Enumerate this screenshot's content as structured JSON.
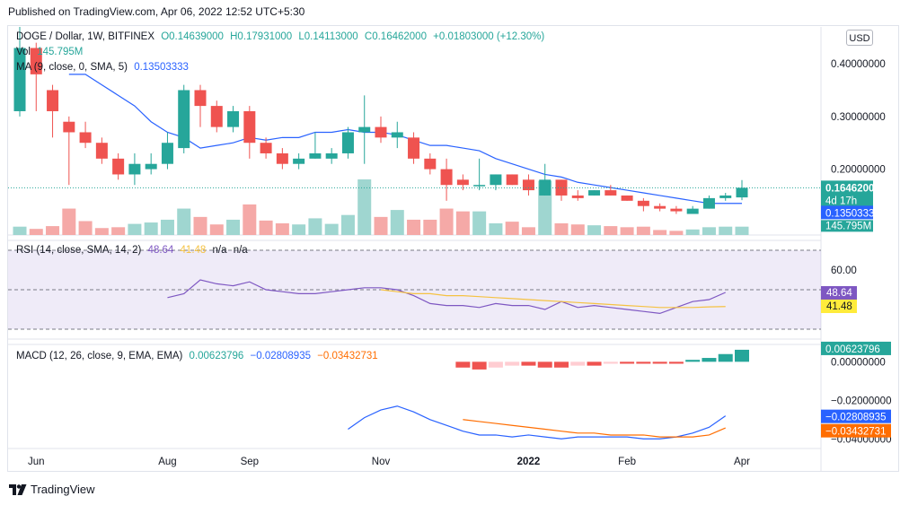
{
  "caption": "Published on TradingView.com, Apr 06, 2022 12:52 UTC+5:30",
  "brand": "TradingView",
  "currency_button": "USD",
  "legend": {
    "symbol": "DOGE / Dollar, 1W, BITFINEX",
    "open": "O0.14639000",
    "high": "H0.17931000",
    "low": "L0.14113000",
    "close": "C0.16462000",
    "change": "+0.01803000 (+12.30%)",
    "vol_label": "Vol",
    "vol_value": "145.795M",
    "ma_label": "MA (9, close, 0, SMA, 5)",
    "ma_value": "0.13503333",
    "rsi_label": "RSI (14, close, SMA, 14, 2)",
    "rsi_value": "48.64",
    "rsi_sma_value": "41.48",
    "rsi_na1": "n/a",
    "rsi_na2": "n/a",
    "macd_label": "MACD (12, 26, close, 9, EMA, EMA)",
    "macd_value": "0.00623796",
    "macd_signal_value": "−0.02808935",
    "macd_hist_value": "−0.03432731"
  },
  "colors": {
    "up": "#26a69a",
    "down": "#ef5350",
    "vol_up": "#9fd6d0",
    "vol_down": "#f5a9a7",
    "ma": "#2962ff",
    "rsi": "#7e57c2",
    "rsi_sma": "#f5c242",
    "macd": "#2962ff",
    "signal": "#ff6d00",
    "price_label": "#26a69a",
    "ma_label": "#2962ff",
    "rsi_label": "#7e57c2",
    "rsi_sma_label": "#ffeb3b"
  },
  "chart_data": {
    "type": "candlestick",
    "x_tick_labels": [
      "Jun",
      "Aug",
      "Sep",
      "Nov",
      "2022",
      "Feb",
      "Apr"
    ],
    "price_axis_ticks": [
      "0.40000000",
      "0.30000000",
      "0.20000000"
    ],
    "price_axis_values": [
      0.4,
      0.3,
      0.2
    ],
    "price_range": [
      0.075,
      0.47
    ],
    "last_price_label": "0.16462000",
    "countdown_label": "4d 17h",
    "ma_label_value": "0.13503333",
    "vol_label_value": "145.795M",
    "candles": [
      {
        "o": 0.31,
        "h": 0.47,
        "l": 0.3,
        "c": 0.43,
        "v": 0.3
      },
      {
        "o": 0.43,
        "h": 0.44,
        "l": 0.31,
        "c": 0.38,
        "v": 0.22
      },
      {
        "o": 0.35,
        "h": 0.36,
        "l": 0.26,
        "c": 0.31,
        "v": 0.32
      },
      {
        "o": 0.29,
        "h": 0.3,
        "l": 0.17,
        "c": 0.27,
        "v": 0.95
      },
      {
        "o": 0.27,
        "h": 0.29,
        "l": 0.24,
        "c": 0.25,
        "v": 0.5
      },
      {
        "o": 0.25,
        "h": 0.26,
        "l": 0.21,
        "c": 0.22,
        "v": 0.25
      },
      {
        "o": 0.22,
        "h": 0.23,
        "l": 0.18,
        "c": 0.19,
        "v": 0.28
      },
      {
        "o": 0.19,
        "h": 0.23,
        "l": 0.17,
        "c": 0.21,
        "v": 0.4
      },
      {
        "o": 0.2,
        "h": 0.23,
        "l": 0.19,
        "c": 0.21,
        "v": 0.45
      },
      {
        "o": 0.21,
        "h": 0.27,
        "l": 0.2,
        "c": 0.25,
        "v": 0.55
      },
      {
        "o": 0.24,
        "h": 0.36,
        "l": 0.23,
        "c": 0.35,
        "v": 0.95
      },
      {
        "o": 0.35,
        "h": 0.36,
        "l": 0.28,
        "c": 0.32,
        "v": 0.65
      },
      {
        "o": 0.32,
        "h": 0.33,
        "l": 0.27,
        "c": 0.28,
        "v": 0.38
      },
      {
        "o": 0.28,
        "h": 0.32,
        "l": 0.27,
        "c": 0.31,
        "v": 0.55
      },
      {
        "o": 0.31,
        "h": 0.32,
        "l": 0.22,
        "c": 0.25,
        "v": 1.1
      },
      {
        "o": 0.25,
        "h": 0.26,
        "l": 0.22,
        "c": 0.23,
        "v": 0.52
      },
      {
        "o": 0.23,
        "h": 0.24,
        "l": 0.2,
        "c": 0.21,
        "v": 0.42
      },
      {
        "o": 0.21,
        "h": 0.23,
        "l": 0.2,
        "c": 0.22,
        "v": 0.38
      },
      {
        "o": 0.22,
        "h": 0.27,
        "l": 0.22,
        "c": 0.23,
        "v": 0.6
      },
      {
        "o": 0.22,
        "h": 0.24,
        "l": 0.21,
        "c": 0.23,
        "v": 0.4
      },
      {
        "o": 0.23,
        "h": 0.28,
        "l": 0.22,
        "c": 0.27,
        "v": 0.72
      },
      {
        "o": 0.27,
        "h": 0.34,
        "l": 0.21,
        "c": 0.28,
        "v": 2.0
      },
      {
        "o": 0.28,
        "h": 0.3,
        "l": 0.25,
        "c": 0.26,
        "v": 0.65
      },
      {
        "o": 0.26,
        "h": 0.29,
        "l": 0.24,
        "c": 0.27,
        "v": 0.9
      },
      {
        "o": 0.26,
        "h": 0.27,
        "l": 0.21,
        "c": 0.22,
        "v": 0.55
      },
      {
        "o": 0.22,
        "h": 0.23,
        "l": 0.19,
        "c": 0.2,
        "v": 0.55
      },
      {
        "o": 0.2,
        "h": 0.22,
        "l": 0.14,
        "c": 0.17,
        "v": 0.95
      },
      {
        "o": 0.18,
        "h": 0.19,
        "l": 0.16,
        "c": 0.17,
        "v": 0.85
      },
      {
        "o": 0.17,
        "h": 0.22,
        "l": 0.16,
        "c": 0.17,
        "v": 0.85
      },
      {
        "o": 0.17,
        "h": 0.19,
        "l": 0.16,
        "c": 0.19,
        "v": 0.42
      },
      {
        "o": 0.19,
        "h": 0.19,
        "l": 0.17,
        "c": 0.17,
        "v": 0.48
      },
      {
        "o": 0.18,
        "h": 0.19,
        "l": 0.15,
        "c": 0.16,
        "v": 0.28
      },
      {
        "o": 0.15,
        "h": 0.21,
        "l": 0.15,
        "c": 0.18,
        "v": 1.95
      },
      {
        "o": 0.18,
        "h": 0.18,
        "l": 0.14,
        "c": 0.15,
        "v": 0.42
      },
      {
        "o": 0.15,
        "h": 0.16,
        "l": 0.14,
        "c": 0.145,
        "v": 0.38
      },
      {
        "o": 0.15,
        "h": 0.16,
        "l": 0.15,
        "c": 0.16,
        "v": 0.35
      },
      {
        "o": 0.16,
        "h": 0.17,
        "l": 0.15,
        "c": 0.15,
        "v": 0.32
      },
      {
        "o": 0.15,
        "h": 0.15,
        "l": 0.14,
        "c": 0.14,
        "v": 0.28
      },
      {
        "o": 0.14,
        "h": 0.145,
        "l": 0.12,
        "c": 0.13,
        "v": 0.3
      },
      {
        "o": 0.13,
        "h": 0.135,
        "l": 0.12,
        "c": 0.125,
        "v": 0.18
      },
      {
        "o": 0.125,
        "h": 0.13,
        "l": 0.115,
        "c": 0.12,
        "v": 0.15
      },
      {
        "o": 0.115,
        "h": 0.13,
        "l": 0.115,
        "c": 0.125,
        "v": 0.2
      },
      {
        "o": 0.125,
        "h": 0.15,
        "l": 0.125,
        "c": 0.145,
        "v": 0.28
      },
      {
        "o": 0.145,
        "h": 0.155,
        "l": 0.14,
        "c": 0.15,
        "v": 0.3
      },
      {
        "o": 0.14639,
        "h": 0.17931,
        "l": 0.14113,
        "c": 0.16462,
        "v": 0.3
      }
    ],
    "ma": [
      null,
      null,
      null,
      0.38,
      0.38,
      0.36,
      0.34,
      0.32,
      0.29,
      0.27,
      0.26,
      0.24,
      0.245,
      0.25,
      0.26,
      0.255,
      0.26,
      0.26,
      0.27,
      0.27,
      0.275,
      0.27,
      0.27,
      0.265,
      0.255,
      0.245,
      0.245,
      0.24,
      0.235,
      0.22,
      0.21,
      0.2,
      0.19,
      0.185,
      0.175,
      0.17,
      0.165,
      0.16,
      0.155,
      0.15,
      0.145,
      0.14,
      0.135,
      0.135,
      0.13503
    ],
    "rsi": {
      "axis_ticks": [
        "60.00"
      ],
      "axis_values": [
        60
      ],
      "range": [
        25,
        75
      ],
      "band_upper": 70,
      "band_middle": 50,
      "band_lower": 30,
      "last_label": "48.64",
      "sma_label": "41.48",
      "rsi_values": [
        null,
        null,
        null,
        null,
        null,
        null,
        null,
        null,
        null,
        46,
        48,
        55,
        53,
        52,
        54,
        50,
        49,
        48,
        48,
        49,
        50,
        51,
        51,
        50,
        47,
        43,
        42,
        42,
        41,
        43,
        42,
        42,
        40,
        44,
        41,
        42,
        41,
        40,
        39,
        38,
        41,
        44,
        45,
        48.64,
        null
      ],
      "sma_values": [
        null,
        null,
        null,
        null,
        null,
        null,
        null,
        null,
        null,
        null,
        null,
        null,
        null,
        null,
        null,
        null,
        null,
        null,
        null,
        null,
        null,
        null,
        50,
        49,
        48,
        48,
        47,
        47,
        46.5,
        46,
        45.5,
        45,
        44.5,
        44,
        43.5,
        43,
        42.5,
        42,
        41.5,
        41,
        41,
        41,
        41.3,
        41.48,
        null
      ]
    },
    "macd": {
      "axis_ticks": [
        "0.00000000",
        "−0.02000000",
        "−0.04000000"
      ],
      "axis_values": [
        0,
        -0.02,
        -0.04
      ],
      "range": [
        -0.045,
        0.009
      ],
      "macd_label": "0.00623796",
      "signal_label": "−0.02808935",
      "hist_label": "−0.03432731",
      "histogram": [
        null,
        null,
        null,
        null,
        null,
        null,
        null,
        null,
        null,
        null,
        null,
        null,
        null,
        null,
        null,
        null,
        null,
        null,
        null,
        null,
        null,
        null,
        null,
        null,
        null,
        null,
        null,
        -0.003,
        -0.004,
        -0.003,
        -0.002,
        -0.002,
        -0.003,
        -0.003,
        -0.002,
        -0.002,
        -0.001,
        -0.001,
        -0.001,
        -0.001,
        -0.001,
        0.001,
        0.002,
        0.004,
        0.00624
      ],
      "macd_values": [
        null,
        null,
        null,
        null,
        null,
        null,
        null,
        null,
        null,
        null,
        null,
        null,
        null,
        null,
        null,
        null,
        null,
        null,
        null,
        null,
        -0.035,
        -0.029,
        -0.025,
        -0.023,
        -0.026,
        -0.03,
        -0.033,
        -0.036,
        -0.038,
        -0.038,
        -0.039,
        -0.038,
        -0.039,
        -0.04,
        -0.039,
        -0.039,
        -0.039,
        -0.039,
        -0.04,
        -0.04,
        -0.039,
        -0.037,
        -0.034,
        -0.02809,
        null
      ],
      "signal_values": [
        null,
        null,
        null,
        null,
        null,
        null,
        null,
        null,
        null,
        null,
        null,
        null,
        null,
        null,
        null,
        null,
        null,
        null,
        null,
        null,
        null,
        null,
        null,
        null,
        null,
        null,
        null,
        -0.03,
        -0.031,
        -0.032,
        -0.033,
        -0.034,
        -0.035,
        -0.036,
        -0.037,
        -0.037,
        -0.038,
        -0.038,
        -0.038,
        -0.039,
        -0.039,
        -0.039,
        -0.038,
        -0.03433,
        null
      ]
    }
  }
}
